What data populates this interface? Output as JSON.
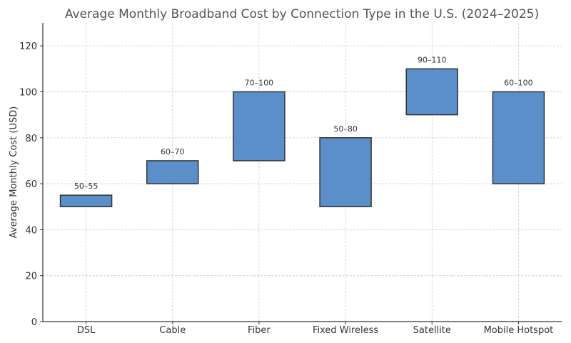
{
  "chart_data": {
    "type": "bar",
    "subtype": "floating-range",
    "title": "Average Monthly Broadband Cost by Connection Type in the U.S. (2024–2025)",
    "xlabel": "",
    "ylabel": "Average Monthly Cost (USD)",
    "ylim": [
      0,
      130
    ],
    "yticks": [
      0,
      20,
      40,
      60,
      80,
      100,
      120
    ],
    "grid": true,
    "categories": [
      "DSL",
      "Cable",
      "Fiber",
      "Fixed Wireless",
      "Satellite",
      "Mobile Hotspot"
    ],
    "low": [
      50,
      60,
      70,
      50,
      90,
      60
    ],
    "high": [
      55,
      70,
      100,
      80,
      110,
      100
    ],
    "labels": [
      "50–55",
      "60–70",
      "70–100",
      "50–80",
      "90–110",
      "60–100"
    ],
    "bar_color": "#5b8fc9",
    "edge_color": "#333333"
  }
}
